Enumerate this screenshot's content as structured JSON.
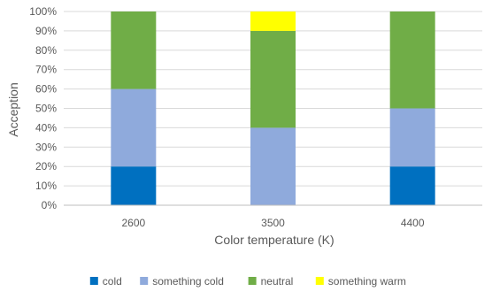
{
  "chart_data": {
    "type": "bar",
    "stacked": true,
    "categories": [
      "2600",
      "3500",
      "4400"
    ],
    "series": [
      {
        "name": "cold",
        "values": [
          20,
          0,
          20
        ],
        "color": "#0070C0"
      },
      {
        "name": "something cold",
        "values": [
          40,
          40,
          30
        ],
        "color": "#8FAADC"
      },
      {
        "name": "neutral",
        "values": [
          40,
          50,
          50
        ],
        "color": "#70AD47"
      },
      {
        "name": "something warm",
        "values": [
          0,
          10,
          0
        ],
        "color": "#FFFF00"
      }
    ],
    "xlabel": "Color temperature (K)",
    "ylabel": "Acception",
    "ylim": [
      0,
      100
    ],
    "yticks": [
      "0%",
      "10%",
      "20%",
      "30%",
      "40%",
      "50%",
      "60%",
      "70%",
      "80%",
      "90%",
      "100%"
    ],
    "grid": true,
    "legend": "bottom"
  }
}
